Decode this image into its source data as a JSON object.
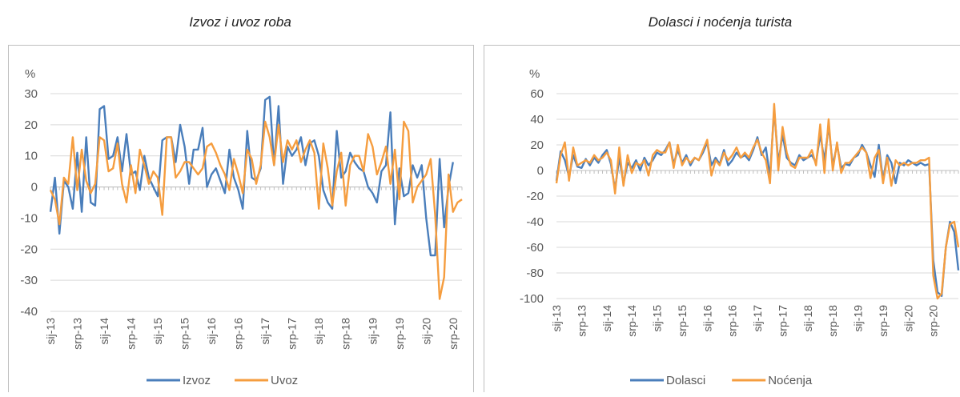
{
  "chart_data": [
    {
      "type": "line",
      "title": "Izvoz i uvoz roba",
      "ylabel": "%",
      "ylim": [
        -40,
        30
      ],
      "yticks": [
        30,
        20,
        10,
        0,
        -10,
        -20,
        -30,
        -40
      ],
      "xlabel": "",
      "tick_labels": [
        "sij-13",
        "srp-13",
        "sij-14",
        "srp-14",
        "sij-15",
        "srp-15",
        "sij-16",
        "srp-16",
        "sij-17",
        "srp-17",
        "sij-18",
        "srp-18",
        "sij-19",
        "srp-19",
        "sij-20",
        "srp-20"
      ],
      "x_start": "2013-01",
      "grid": true,
      "legend": "bottom",
      "series": [
        {
          "name": "Izvoz",
          "color": "#4a7ebb",
          "values": [
            -8,
            3,
            -15,
            2,
            0,
            -7,
            11,
            -8,
            16,
            -5,
            -6,
            25,
            26,
            9,
            10,
            16,
            5,
            17,
            4,
            5,
            -1,
            10,
            3,
            0,
            -3,
            15,
            16,
            16,
            8,
            20,
            13,
            1,
            12,
            12,
            19,
            0,
            4,
            6,
            2,
            -2,
            12,
            3,
            -1,
            -7,
            18,
            3,
            2,
            6,
            28,
            29,
            7,
            26,
            1,
            13,
            10,
            12,
            16,
            7,
            14,
            15,
            10,
            -1,
            -5,
            -7,
            18,
            3,
            5,
            11,
            8,
            6,
            5,
            0,
            -2,
            -5,
            5,
            7,
            24,
            -12,
            6,
            -3,
            -2,
            7,
            3,
            7,
            -10,
            -22,
            -22,
            9,
            -13,
            0,
            8
          ]
        },
        {
          "name": "Uvoz",
          "color": "#f59d3f",
          "values": [
            -1,
            -4,
            -12,
            3,
            1,
            16,
            -1,
            12,
            2,
            -2,
            1,
            16,
            15,
            5,
            6,
            14,
            1,
            -5,
            7,
            -2,
            12,
            7,
            1,
            5,
            3,
            -9,
            16,
            16,
            3,
            5,
            8,
            8,
            6,
            4,
            6,
            13,
            14,
            11,
            7,
            4,
            -1,
            9,
            4,
            -2,
            12,
            9,
            1,
            7,
            21,
            16,
            7,
            20,
            8,
            15,
            12,
            15,
            8,
            12,
            15,
            11,
            -7,
            14,
            6,
            -6,
            5,
            11,
            -6,
            7,
            10,
            10,
            5,
            17,
            13,
            4,
            8,
            13,
            1,
            12,
            -4,
            21,
            18,
            -5,
            0,
            2,
            4,
            9,
            -9,
            -36,
            -29,
            4,
            -8,
            -5,
            -4
          ]
        }
      ]
    },
    {
      "type": "line",
      "title": "Dolasci i noćenja turista",
      "ylabel": "%",
      "ylim": [
        -100,
        60
      ],
      "yticks": [
        60,
        40,
        20,
        0,
        -20,
        -40,
        -60,
        -80,
        -100
      ],
      "xlabel": "",
      "tick_labels": [
        "sij-13",
        "srp-13",
        "sij-14",
        "srp-14",
        "sij-15",
        "srp-15",
        "sij-16",
        "srp-16",
        "sij-17",
        "srp-17",
        "sij-18",
        "srp-18",
        "sij-19",
        "srp-19",
        "sij-20",
        "srp-20"
      ],
      "x_start": "2013-01",
      "grid": true,
      "legend": "bottom",
      "series": [
        {
          "name": "Dolasci",
          "color": "#4a7ebb",
          "values": [
            -8,
            15,
            8,
            -5,
            12,
            3,
            2,
            9,
            4,
            10,
            6,
            12,
            16,
            5,
            -15,
            10,
            -10,
            6,
            2,
            8,
            0,
            10,
            4,
            8,
            14,
            12,
            16,
            22,
            5,
            16,
            6,
            12,
            4,
            10,
            8,
            14,
            22,
            4,
            10,
            5,
            16,
            4,
            8,
            14,
            10,
            12,
            8,
            16,
            26,
            12,
            18,
            -5,
            48,
            6,
            28,
            10,
            6,
            4,
            12,
            8,
            10,
            12,
            6,
            28,
            8,
            35,
            4,
            20,
            2,
            5,
            4,
            10,
            12,
            20,
            14,
            4,
            -5,
            20,
            -8,
            12,
            6,
            -10,
            6,
            4,
            8,
            6,
            4,
            6,
            4,
            5,
            -70,
            -95,
            -98,
            -60,
            -40,
            -48,
            -78
          ]
        },
        {
          "name": "Noćenja",
          "color": "#f59d3f",
          "values": [
            -10,
            12,
            22,
            -8,
            18,
            4,
            6,
            8,
            6,
            12,
            8,
            10,
            14,
            8,
            -18,
            18,
            -12,
            12,
            -2,
            6,
            4,
            8,
            -4,
            12,
            16,
            14,
            14,
            22,
            2,
            20,
            4,
            10,
            6,
            10,
            8,
            16,
            24,
            -4,
            8,
            4,
            14,
            8,
            12,
            18,
            10,
            14,
            10,
            18,
            24,
            14,
            8,
            -10,
            52,
            0,
            34,
            14,
            4,
            2,
            10,
            10,
            10,
            16,
            4,
            36,
            -2,
            40,
            0,
            22,
            -2,
            6,
            6,
            10,
            14,
            18,
            14,
            -6,
            10,
            16,
            -10,
            10,
            -12,
            8,
            4,
            6,
            4,
            6,
            6,
            8,
            8,
            10,
            -82,
            -100,
            -96,
            -60,
            -42,
            -40,
            -60
          ]
        }
      ]
    }
  ]
}
